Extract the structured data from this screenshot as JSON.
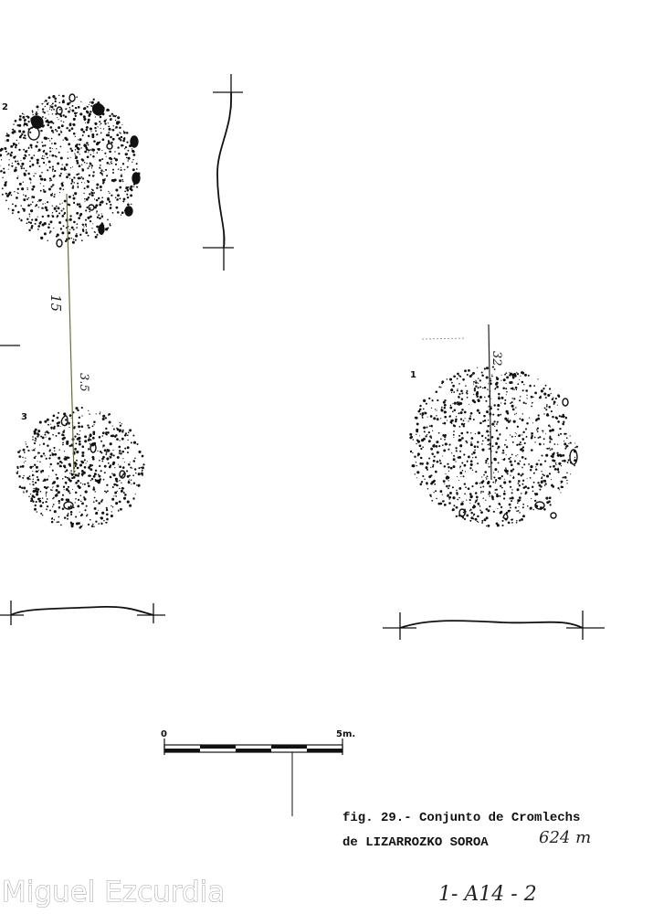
{
  "caption": {
    "line1": "fig. 29.- Conjunto de Cromlechs",
    "line2": "de LIZARROZKO SOROA",
    "altitude_note": "624 m"
  },
  "cromlechs": [
    {
      "id": "1",
      "label": "1"
    },
    {
      "id": "2",
      "label": "2"
    },
    {
      "id": "3",
      "label": "3"
    }
  ],
  "distances": [
    {
      "label": "15",
      "between": "2-3"
    },
    {
      "label": "3.5",
      "between": "2-3"
    },
    {
      "label": "32",
      "between": "1"
    }
  ],
  "scale_bar": {
    "start_label": "0",
    "end_label": "5m."
  },
  "archive_mark": "1- A14 - 2",
  "watermark": "Miguel Ezcurdia"
}
